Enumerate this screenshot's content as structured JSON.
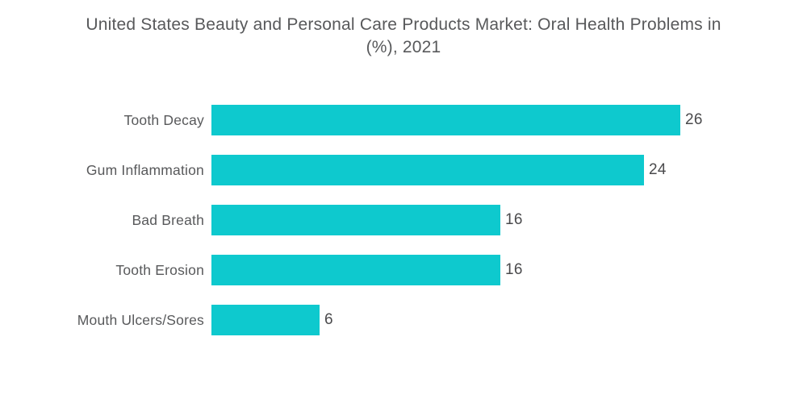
{
  "title": {
    "line1": "United States Beauty and Personal Care Products Market: Oral Health Problems in",
    "line2": "(%), 2021"
  },
  "colors": {
    "bar": "#0EC9CE",
    "title_text": "#58595B",
    "category_text": "#58595B",
    "value_text": "#4A4A4C",
    "background": "#FFFFFF"
  },
  "chart_data": {
    "type": "bar",
    "orientation": "horizontal",
    "title": "United States Beauty and Personal Care Products Market: Oral Health Problems in (%), 2021",
    "categories": [
      "Tooth Decay",
      "Gum Inflammation",
      "Bad Breath",
      "Tooth Erosion",
      "Mouth Ulcers/Sores"
    ],
    "values": [
      26,
      24,
      16,
      16,
      6
    ],
    "xlabel": "",
    "ylabel": "",
    "xlim": [
      0,
      26
    ],
    "value_labels_shown": true,
    "grid": false,
    "legend": false,
    "axis_lines": false
  }
}
